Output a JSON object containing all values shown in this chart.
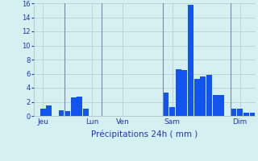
{
  "bar_values": [
    0,
    1,
    1.5,
    0,
    0.8,
    0.7,
    2.6,
    2.8,
    1.0,
    0,
    0,
    0,
    0,
    0,
    0,
    0,
    0,
    0,
    0,
    0,
    0,
    3.3,
    1.3,
    6.6,
    6.5,
    15.8,
    5.3,
    5.6,
    5.8,
    3.0,
    3.0,
    0,
    1.0,
    1.0,
    0.5,
    0.5
  ],
  "day_labels": [
    "Jeu",
    "Lun",
    "Ven",
    "Sam",
    "Dim"
  ],
  "day_positions": [
    1,
    9,
    14,
    22,
    33
  ],
  "xlabel": "Précipitations 24h ( mm )",
  "ylim": [
    0,
    16
  ],
  "yticks": [
    0,
    2,
    4,
    6,
    8,
    10,
    12,
    14,
    16
  ],
  "bar_color": "#1155ee",
  "background_color": "#d4f0f0",
  "grid_color": "#b0cccc",
  "text_color": "#2233bb",
  "separator_color": "#7788aa",
  "day_separators": [
    4.5,
    10.5,
    20.5,
    31.5
  ]
}
